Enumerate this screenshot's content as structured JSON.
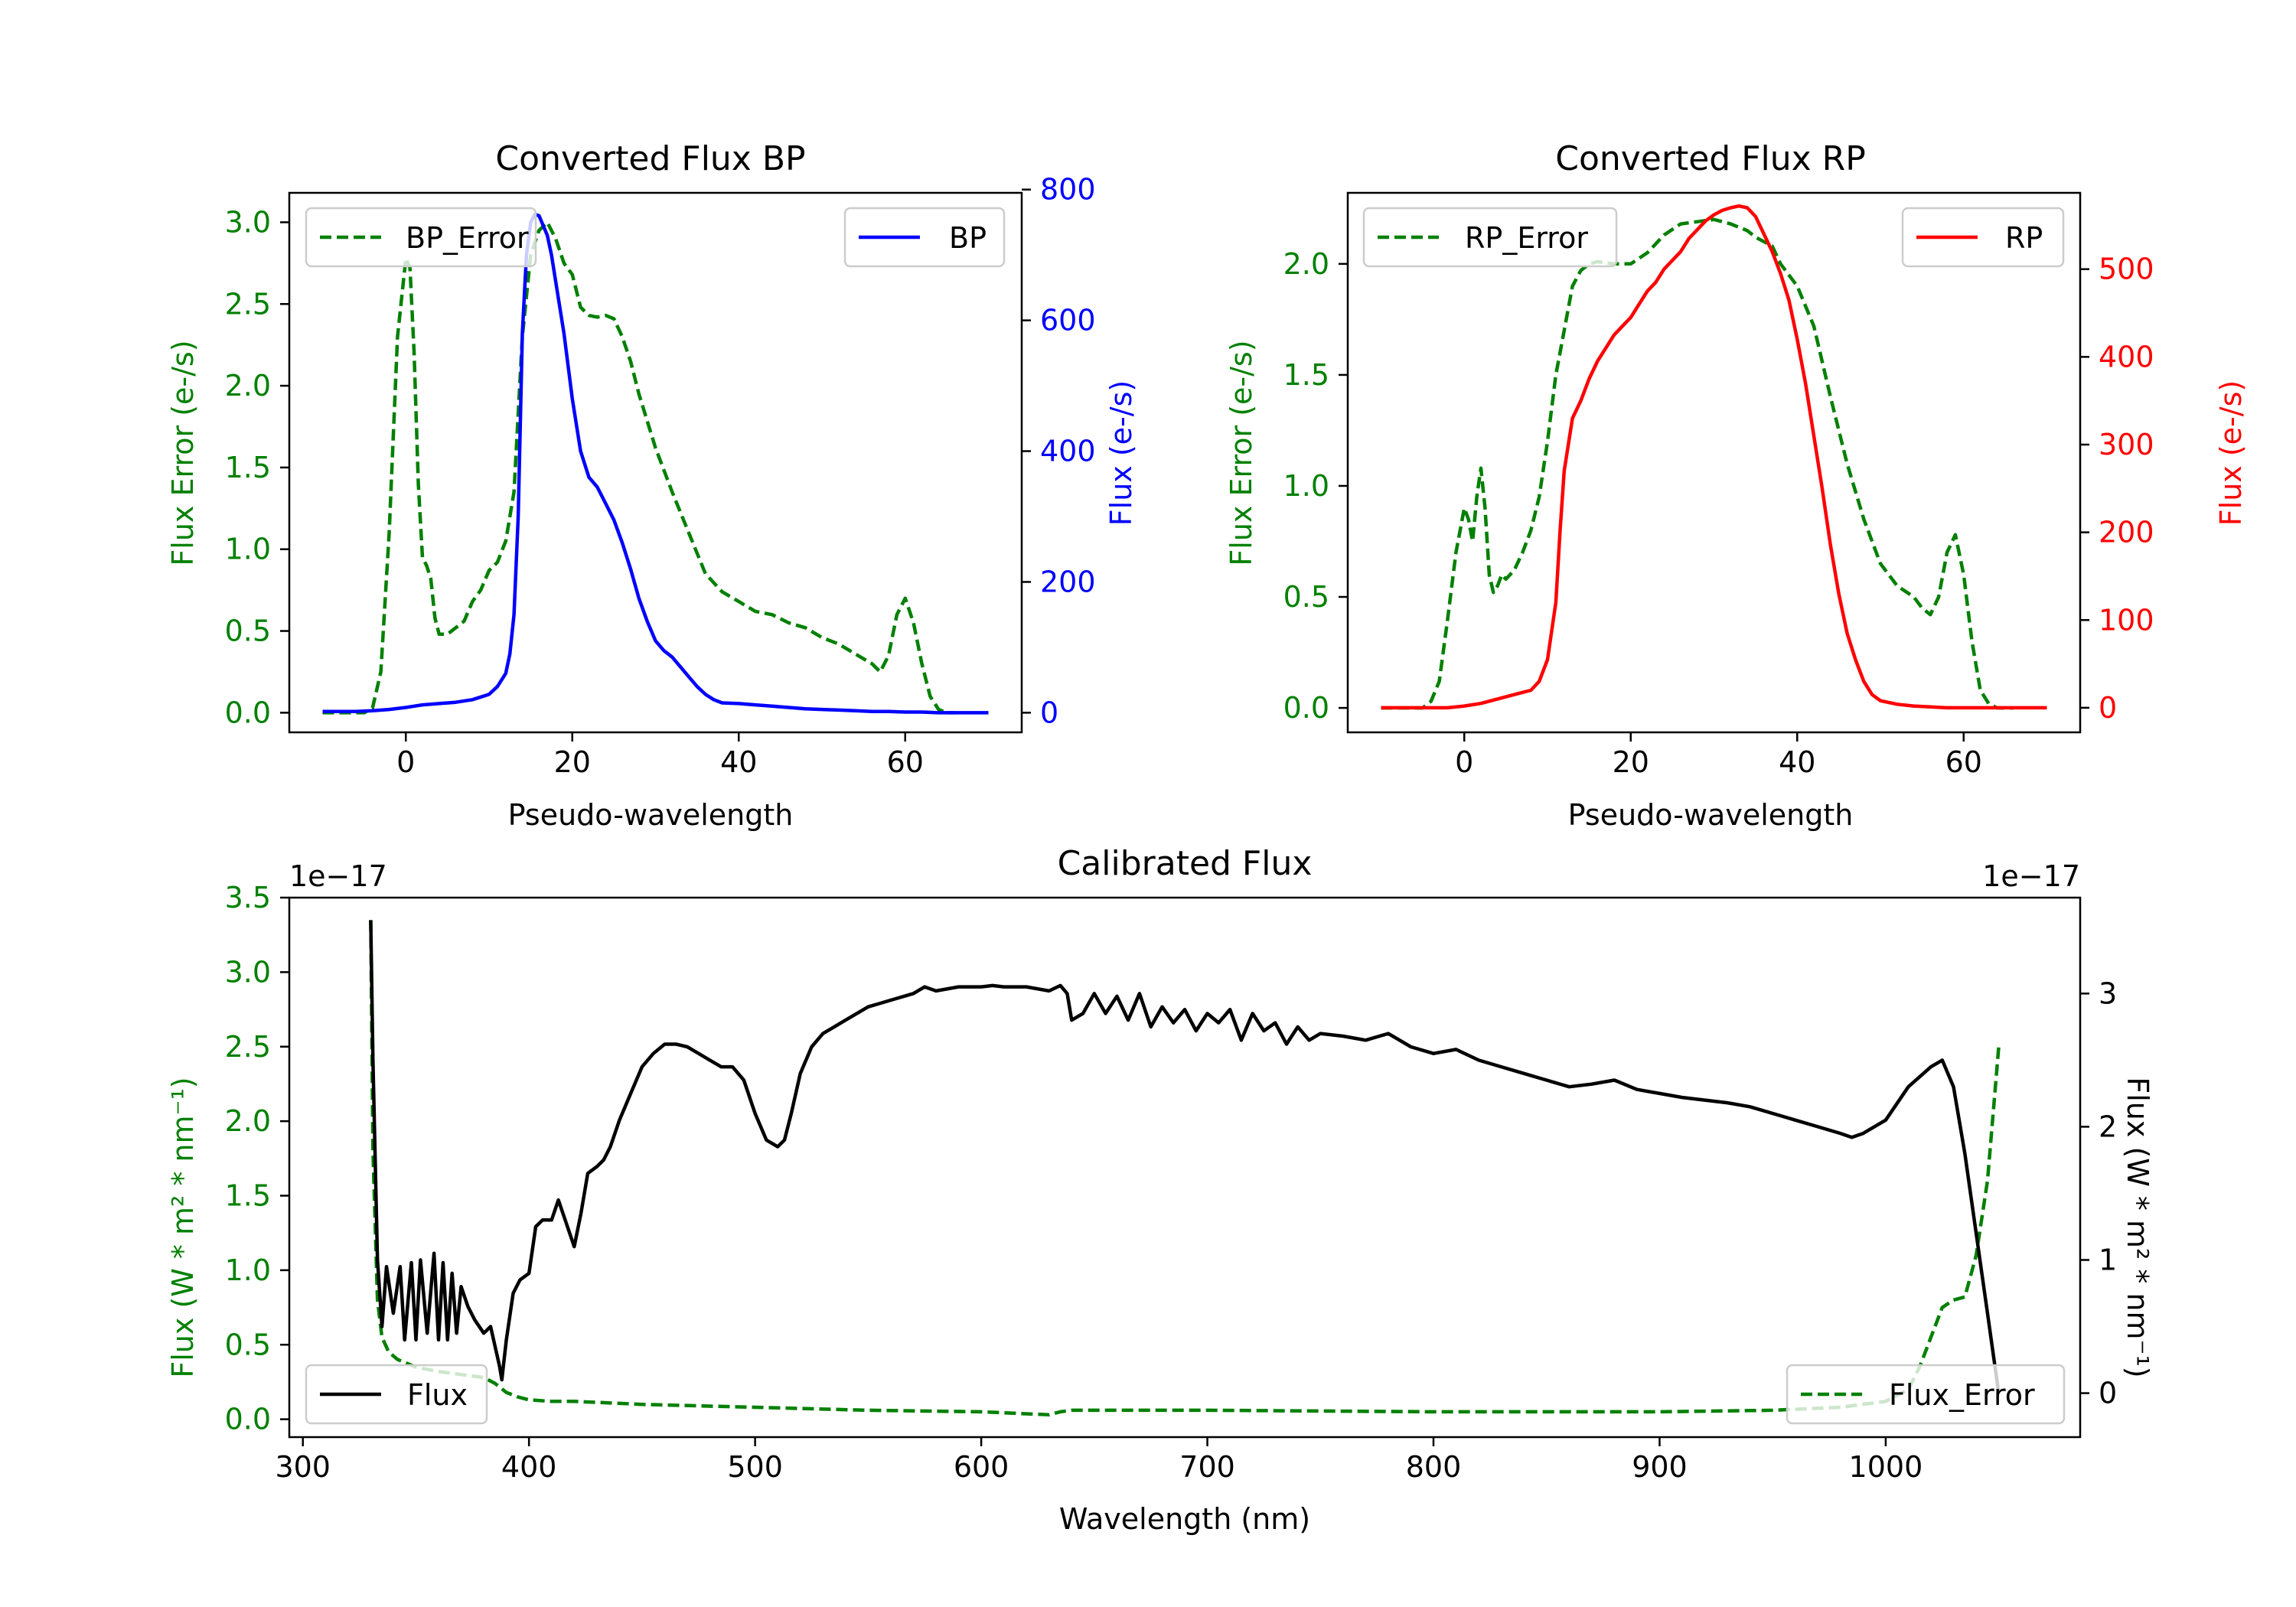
{
  "colors": {
    "green": "#008000",
    "blue": "#0000ff",
    "red": "#ff0000",
    "black": "#000000",
    "frame": "#000000"
  },
  "chart_data": [
    {
      "id": "bp",
      "type": "line",
      "title": "Converted Flux BP",
      "xlabel": "Pseudo-wavelength",
      "ylabel_left": "Flux Error (e-/s)",
      "ylabel_right": "Flux (e-/s)",
      "xlim": [
        -14,
        74
      ],
      "ylim_left": [
        -0.12,
        3.18
      ],
      "ylim_right": [
        -30,
        795
      ],
      "xticks": [
        0,
        20,
        40,
        60
      ],
      "yticks_left": [
        0.0,
        0.5,
        1.0,
        1.5,
        2.0,
        2.5,
        3.0
      ],
      "yticks_left_labels": [
        "0.0",
        "0.5",
        "1.0",
        "1.5",
        "2.0",
        "2.5",
        "3.0"
      ],
      "yticks_right": [
        0,
        200,
        400,
        600,
        800
      ],
      "yticks_right_labels": [
        "0",
        "200",
        "400",
        "600",
        "800"
      ],
      "legend_left": {
        "label": "BP_Error",
        "placement": "upper-left"
      },
      "legend_right": {
        "label": "BP",
        "placement": "upper-right"
      },
      "series": [
        {
          "name": "BP_Error",
          "axis": "left",
          "style": "dashed",
          "color": "green",
          "x": [
            -10,
            -5,
            -4,
            -3,
            -2,
            -1,
            0,
            0.5,
            1,
            1.5,
            2,
            2.5,
            3,
            3.5,
            4,
            4.5,
            5,
            6,
            7,
            8,
            9,
            10,
            11,
            12,
            13,
            14,
            15,
            16,
            17,
            18,
            19,
            20,
            21,
            22,
            23,
            24,
            25,
            26,
            27,
            28,
            30,
            32,
            34,
            36,
            38,
            40,
            42,
            44,
            46,
            48,
            50,
            52,
            54,
            56,
            57,
            58,
            59,
            60,
            61,
            62,
            63,
            64,
            65,
            66
          ],
          "y": [
            0,
            0,
            0.03,
            0.25,
            1.1,
            2.3,
            2.78,
            2.72,
            2.2,
            1.4,
            0.95,
            0.9,
            0.82,
            0.58,
            0.48,
            0.48,
            0.48,
            0.52,
            0.56,
            0.68,
            0.75,
            0.87,
            0.92,
            1.05,
            1.35,
            2.3,
            2.8,
            2.95,
            3.0,
            2.9,
            2.75,
            2.68,
            2.48,
            2.43,
            2.42,
            2.43,
            2.41,
            2.3,
            2.15,
            1.95,
            1.62,
            1.35,
            1.1,
            0.85,
            0.74,
            0.68,
            0.62,
            0.6,
            0.55,
            0.52,
            0.46,
            0.42,
            0.36,
            0.3,
            0.25,
            0.35,
            0.6,
            0.7,
            0.55,
            0.3,
            0.1,
            0.02,
            0,
            0
          ]
        },
        {
          "name": "BP",
          "axis": "right",
          "style": "solid",
          "color": "blue",
          "x": [
            -10,
            -6,
            -4,
            -2,
            0,
            1,
            2,
            4,
            6,
            8,
            10,
            11,
            12,
            12.5,
            13,
            13.5,
            14,
            14.5,
            15,
            15.5,
            16,
            17,
            17.5,
            18,
            19,
            20,
            21,
            22,
            23,
            24,
            25,
            26,
            27,
            28,
            29,
            30,
            31,
            32,
            33,
            34,
            35,
            36,
            37,
            38,
            40,
            42,
            44,
            46,
            48,
            50,
            52,
            54,
            56,
            58,
            60,
            62,
            64,
            66,
            70
          ],
          "y": [
            2,
            2,
            3,
            5,
            8,
            10,
            12,
            14,
            16,
            20,
            28,
            40,
            60,
            90,
            150,
            300,
            580,
            700,
            750,
            762,
            760,
            730,
            700,
            660,
            580,
            480,
            400,
            360,
            345,
            320,
            295,
            260,
            220,
            175,
            140,
            110,
            95,
            85,
            70,
            55,
            40,
            28,
            20,
            15,
            14,
            12,
            10,
            8,
            6,
            5,
            4,
            3,
            2,
            2,
            1,
            1,
            0,
            0,
            0
          ]
        }
      ]
    },
    {
      "id": "rp",
      "type": "line",
      "title": "Converted Flux RP",
      "xlabel": "Pseudo-wavelength",
      "ylabel_left": "Flux Error (e-/s)",
      "ylabel_right": "Flux (e-/s)",
      "xlim": [
        -14,
        74
      ],
      "ylim_left": [
        -0.11,
        2.32
      ],
      "ylim_right": [
        -28,
        587
      ],
      "xticks": [
        0,
        20,
        40,
        60
      ],
      "yticks_left": [
        0.0,
        0.5,
        1.0,
        1.5,
        2.0
      ],
      "yticks_left_labels": [
        "0.0",
        "0.5",
        "1.0",
        "1.5",
        "2.0"
      ],
      "yticks_right": [
        0,
        100,
        200,
        300,
        400,
        500
      ],
      "yticks_right_labels": [
        "0",
        "100",
        "200",
        "300",
        "400",
        "500"
      ],
      "legend_left": {
        "label": "RP_Error",
        "placement": "upper-left"
      },
      "legend_right": {
        "label": "RP",
        "placement": "upper-right"
      },
      "series": [
        {
          "name": "RP_Error",
          "axis": "left",
          "style": "dashed",
          "color": "green",
          "x": [
            -10,
            -5,
            -4,
            -3,
            -2,
            -1,
            0,
            0.5,
            1,
            1.5,
            2,
            2.5,
            3,
            3.5,
            4,
            4.5,
            5,
            6,
            7,
            8,
            9,
            10,
            11,
            12,
            13,
            14,
            15,
            16,
            18,
            20,
            22,
            24,
            26,
            28,
            30,
            32,
            34,
            35,
            36,
            37,
            38,
            40,
            42,
            44,
            46,
            48,
            50,
            52,
            54,
            55,
            56,
            57,
            58,
            59,
            60,
            61,
            62,
            63,
            64,
            65,
            66
          ],
          "y": [
            0,
            0,
            0.03,
            0.12,
            0.4,
            0.7,
            0.9,
            0.85,
            0.75,
            0.95,
            1.08,
            0.9,
            0.6,
            0.52,
            0.55,
            0.6,
            0.58,
            0.62,
            0.7,
            0.8,
            0.95,
            1.2,
            1.5,
            1.7,
            1.9,
            1.97,
            2.0,
            2.01,
            2.0,
            2.0,
            2.05,
            2.13,
            2.18,
            2.19,
            2.2,
            2.18,
            2.15,
            2.12,
            2.1,
            2.08,
            2.0,
            1.9,
            1.72,
            1.4,
            1.1,
            0.85,
            0.65,
            0.55,
            0.5,
            0.45,
            0.42,
            0.5,
            0.7,
            0.78,
            0.6,
            0.3,
            0.08,
            0.02,
            0,
            0,
            0
          ]
        },
        {
          "name": "RP",
          "axis": "right",
          "style": "solid",
          "color": "red",
          "x": [
            -10,
            -5,
            -2,
            0,
            2,
            4,
            6,
            8,
            9,
            10,
            11,
            11.5,
            12,
            13,
            14,
            15,
            16,
            17,
            18,
            19,
            20,
            21,
            22,
            23,
            24,
            25,
            26,
            27,
            28,
            29,
            30,
            31,
            32,
            33,
            34,
            35,
            36,
            37,
            38,
            39,
            40,
            41,
            42,
            43,
            44,
            45,
            46,
            47,
            48,
            49,
            50,
            52,
            54,
            56,
            58,
            60,
            62,
            64,
            66,
            70
          ],
          "y": [
            0,
            0,
            0,
            2,
            5,
            10,
            15,
            20,
            30,
            55,
            120,
            200,
            270,
            330,
            350,
            375,
            395,
            410,
            425,
            435,
            445,
            460,
            475,
            485,
            500,
            510,
            520,
            535,
            545,
            555,
            562,
            567,
            570,
            572,
            570,
            560,
            540,
            520,
            495,
            465,
            420,
            370,
            310,
            250,
            185,
            130,
            85,
            55,
            30,
            15,
            8,
            4,
            2,
            1,
            0,
            0,
            0,
            0,
            0,
            0
          ]
        }
      ]
    },
    {
      "id": "calibrated",
      "type": "line",
      "title": "Calibrated Flux",
      "xlabel": "Wavelength (nm)",
      "ylabel_left": "Flux (W * m² * nm⁻¹)",
      "ylabel_right": "Flux (W * m² * nm⁻¹)",
      "offset_left": "1e−17",
      "offset_right": "1e−17",
      "xlim": [
        294,
        1086
      ],
      "ylim_left": [
        -0.12,
        3.5
      ],
      "ylim_right": [
        -0.33,
        3.72
      ],
      "xticks": [
        300,
        400,
        500,
        600,
        700,
        800,
        900,
        1000
      ],
      "yticks_left": [
        0.0,
        0.5,
        1.0,
        1.5,
        2.0,
        2.5,
        3.0,
        3.5
      ],
      "yticks_left_labels": [
        "0.0",
        "0.5",
        "1.0",
        "1.5",
        "2.0",
        "2.5",
        "3.0",
        "3.5"
      ],
      "yticks_right": [
        0,
        1,
        2,
        3
      ],
      "yticks_right_labels": [
        "0",
        "1",
        "2",
        "3"
      ],
      "legend_left": {
        "label": "Flux",
        "placement": "lower-left"
      },
      "legend_right": {
        "label": "Flux_Error",
        "placement": "lower-right"
      },
      "series": [
        {
          "name": "Flux_Error",
          "axis": "left",
          "style": "dashed",
          "color": "green",
          "x": [
            330,
            331,
            333,
            335,
            338,
            342,
            350,
            360,
            370,
            380,
            385,
            390,
            395,
            400,
            410,
            420,
            450,
            500,
            550,
            600,
            630,
            635,
            640,
            700,
            800,
            900,
            950,
            980,
            1000,
            1010,
            1015,
            1020,
            1025,
            1030,
            1035,
            1040,
            1045,
            1050
          ],
          "y": [
            3.35,
            1.8,
            0.8,
            0.55,
            0.45,
            0.4,
            0.35,
            0.32,
            0.3,
            0.28,
            0.24,
            0.18,
            0.15,
            0.13,
            0.12,
            0.12,
            0.1,
            0.08,
            0.06,
            0.05,
            0.03,
            0.05,
            0.06,
            0.06,
            0.05,
            0.05,
            0.06,
            0.08,
            0.12,
            0.2,
            0.35,
            0.55,
            0.75,
            0.8,
            0.82,
            1.1,
            1.6,
            2.5
          ]
        },
        {
          "name": "Flux",
          "axis": "right",
          "style": "solid",
          "color": "black",
          "x": [
            330,
            331,
            333,
            335,
            337,
            340,
            343,
            345,
            348,
            350,
            352,
            355,
            358,
            360,
            362,
            364,
            366,
            368,
            370,
            373,
            376,
            380,
            383,
            385,
            387,
            388,
            390,
            393,
            396,
            400,
            403,
            406,
            410,
            413,
            416,
            420,
            423,
            426,
            430,
            433,
            436,
            440,
            445,
            450,
            455,
            460,
            465,
            470,
            475,
            480,
            485,
            490,
            495,
            500,
            505,
            510,
            513,
            516,
            520,
            525,
            530,
            535,
            540,
            550,
            560,
            570,
            575,
            580,
            590,
            600,
            605,
            610,
            620,
            630,
            635,
            638,
            640,
            645,
            650,
            655,
            660,
            665,
            670,
            675,
            680,
            685,
            690,
            695,
            700,
            705,
            710,
            715,
            720,
            725,
            730,
            735,
            740,
            745,
            750,
            760,
            770,
            780,
            790,
            800,
            810,
            820,
            830,
            840,
            850,
            860,
            870,
            880,
            890,
            900,
            910,
            920,
            930,
            940,
            950,
            960,
            970,
            980,
            985,
            990,
            1000,
            1010,
            1020,
            1025,
            1030,
            1035,
            1040,
            1045,
            1050
          ],
          "y": [
            3.55,
            2.5,
            1.0,
            0.5,
            0.95,
            0.6,
            0.95,
            0.4,
            0.98,
            0.4,
            1.0,
            0.45,
            1.05,
            0.4,
            0.98,
            0.4,
            0.9,
            0.45,
            0.8,
            0.65,
            0.55,
            0.45,
            0.5,
            0.35,
            0.2,
            0.1,
            0.4,
            0.75,
            0.85,
            0.9,
            1.25,
            1.3,
            1.3,
            1.45,
            1.3,
            1.1,
            1.35,
            1.65,
            1.7,
            1.75,
            1.85,
            2.05,
            2.25,
            2.45,
            2.55,
            2.62,
            2.62,
            2.6,
            2.55,
            2.5,
            2.45,
            2.45,
            2.35,
            2.1,
            1.9,
            1.85,
            1.9,
            2.1,
            2.4,
            2.6,
            2.7,
            2.75,
            2.8,
            2.9,
            2.95,
            3.0,
            3.05,
            3.02,
            3.05,
            3.05,
            3.06,
            3.05,
            3.05,
            3.02,
            3.06,
            3.0,
            2.8,
            2.85,
            3.0,
            2.85,
            2.98,
            2.8,
            3.0,
            2.75,
            2.9,
            2.78,
            2.88,
            2.72,
            2.85,
            2.78,
            2.88,
            2.65,
            2.85,
            2.72,
            2.78,
            2.62,
            2.75,
            2.65,
            2.7,
            2.68,
            2.65,
            2.7,
            2.6,
            2.55,
            2.58,
            2.5,
            2.45,
            2.4,
            2.35,
            2.3,
            2.32,
            2.35,
            2.28,
            2.25,
            2.22,
            2.2,
            2.18,
            2.15,
            2.1,
            2.05,
            2.0,
            1.95,
            1.92,
            1.95,
            2.05,
            2.3,
            2.45,
            2.5,
            2.3,
            1.8,
            1.2,
            0.6,
            0.0
          ]
        }
      ]
    }
  ]
}
